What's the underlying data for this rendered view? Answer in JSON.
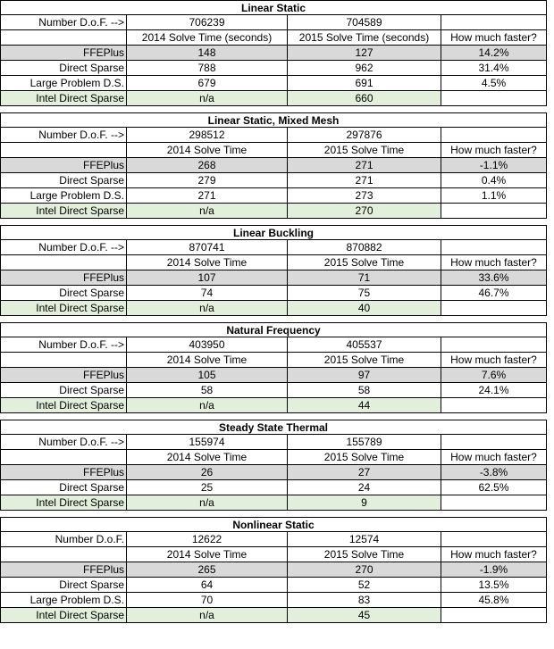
{
  "sections": [
    {
      "title": "Linear Static",
      "dof_label": "Number D.o.F.  -->",
      "dof_2014": "706239",
      "dof_2015": "704589",
      "hdr_2014": "2014 Solve Time  (seconds)",
      "hdr_2015": "2015 Solve Time  (seconds)",
      "hdr_faster": "How much faster?",
      "rows": [
        {
          "name": "FFEPlus",
          "t2014": "148",
          "t2015": "127",
          "faster": "14.2%",
          "style": "gray"
        },
        {
          "name": "Direct Sparse",
          "t2014": "788",
          "t2015": "962",
          "faster": "31.4%",
          "style": ""
        },
        {
          "name": "Large Problem D.S.",
          "t2014": "679",
          "t2015": "691",
          "faster": "4.5%",
          "style": ""
        },
        {
          "name": "Intel Direct Sparse",
          "t2014": "n/a",
          "t2015": "660",
          "faster": "",
          "style": "green"
        }
      ]
    },
    {
      "title": "Linear Static, Mixed Mesh",
      "dof_label": "Number D.o.F.  -->",
      "dof_2014": "298512",
      "dof_2015": "297876",
      "hdr_2014": "2014 Solve Time",
      "hdr_2015": "2015 Solve Time",
      "hdr_faster": "How much faster?",
      "rows": [
        {
          "name": "FFEPlus",
          "t2014": "268",
          "t2015": "271",
          "faster": "-1.1%",
          "style": "gray"
        },
        {
          "name": "Direct Sparse",
          "t2014": "279",
          "t2015": "271",
          "faster": "0.4%",
          "style": ""
        },
        {
          "name": "Large Problem D.S.",
          "t2014": "271",
          "t2015": "273",
          "faster": "1.1%",
          "style": ""
        },
        {
          "name": "Intel Direct Sparse",
          "t2014": "n/a",
          "t2015": "270",
          "faster": "",
          "style": "green"
        }
      ]
    },
    {
      "title": "Linear Buckling",
      "dof_label": "Number D.o.F.  -->",
      "dof_2014": "870741",
      "dof_2015": "870882",
      "hdr_2014": "2014 Solve Time",
      "hdr_2015": "2015 Solve Time",
      "hdr_faster": "How much faster?",
      "rows": [
        {
          "name": "FFEPlus",
          "t2014": "107",
          "t2015": "71",
          "faster": "33.6%",
          "style": "gray"
        },
        {
          "name": "Direct Sparse",
          "t2014": "74",
          "t2015": "75",
          "faster": "46.7%",
          "style": ""
        },
        {
          "name": "Intel Direct Sparse",
          "t2014": "n/a",
          "t2015": "40",
          "faster": "",
          "style": "green"
        }
      ]
    },
    {
      "title": "Natural Frequency",
      "dof_label": "Number D.o.F.  -->",
      "dof_2014": "403950",
      "dof_2015": "405537",
      "hdr_2014": "2014 Solve Time",
      "hdr_2015": "2015 Solve Time",
      "hdr_faster": "How much faster?",
      "rows": [
        {
          "name": "FFEPlus",
          "t2014": "105",
          "t2015": "97",
          "faster": "7.6%",
          "style": "gray"
        },
        {
          "name": "Direct Sparse",
          "t2014": "58",
          "t2015": "58",
          "faster": "24.1%",
          "style": ""
        },
        {
          "name": "Intel Direct Sparse",
          "t2014": "n/a",
          "t2015": "44",
          "faster": "",
          "style": "green"
        }
      ]
    },
    {
      "title": "Steady State Thermal",
      "dof_label": "Number D.o.F.  -->",
      "dof_2014": "155974",
      "dof_2015": "155789",
      "hdr_2014": "2014 Solve Time",
      "hdr_2015": "2015 Solve Time",
      "hdr_faster": "How much faster?",
      "rows": [
        {
          "name": "FFEPlus",
          "t2014": "26",
          "t2015": "27",
          "faster": "-3.8%",
          "style": "gray"
        },
        {
          "name": "Direct Sparse",
          "t2014": "25",
          "t2015": "24",
          "faster": "62.5%",
          "style": ""
        },
        {
          "name": "Intel Direct Sparse",
          "t2014": "n/a",
          "t2015": "9",
          "faster": "",
          "style": "green"
        }
      ]
    },
    {
      "title": "Nonlinear Static",
      "dof_label": "Number D.o.F.",
      "dof_2014": "12622",
      "dof_2015": "12574",
      "hdr_2014": "2014 Solve Time",
      "hdr_2015": "2015 Solve Time",
      "hdr_faster": "How much faster?",
      "rows": [
        {
          "name": "FFEPlus",
          "t2014": "265",
          "t2015": "270",
          "faster": "-1.9%",
          "style": "gray"
        },
        {
          "name": "Direct Sparse",
          "t2014": "64",
          "t2015": "52",
          "faster": "13.5%",
          "style": ""
        },
        {
          "name": "Large Problem D.S.",
          "t2014": "70",
          "t2015": "83",
          "faster": "45.8%",
          "style": ""
        },
        {
          "name": "Intel Direct Sparse",
          "t2014": "n/a",
          "t2015": "45",
          "faster": "",
          "style": "green"
        }
      ]
    }
  ],
  "colors": {
    "gray_row": "#d9d9d9",
    "green_row": "#e2efda",
    "border": "#000000"
  }
}
